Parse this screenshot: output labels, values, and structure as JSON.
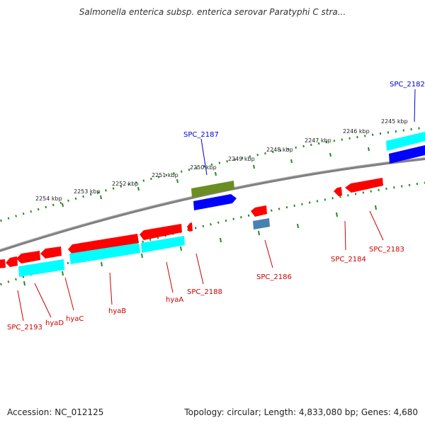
{
  "title": "Salmonella enterica subsp. enterica serovar Paratyphi C stra...",
  "footer": {
    "accession": "Accession: NC_012125",
    "summary": "Topology: circular; Length: 4,833,080 bp; Genes: 4,680"
  },
  "colors": {
    "gene_red": "#ff0000",
    "gene_cyan": "#00ffff",
    "gene_blue": "#0000ff",
    "gene_olive": "#6b8e23",
    "gene_steel": "#4682b4",
    "label_red": "#cc0000",
    "label_blue": "#0000cc",
    "tick_green": "#228b22",
    "backbone": "#808080"
  },
  "scale_labels": [
    "2254 kbp",
    "2253 kbp",
    "2252 kbp",
    "2251 kbp",
    "2250 kbp",
    "2249 kbp",
    "2248 kbp",
    "2247 kbp",
    "2246 kbp",
    "2245 kbp"
  ],
  "gene_labels": [
    "SPC_2182",
    "SPC_2187",
    "SPC_2183",
    "SPC_2184",
    "SPC_2186",
    "SPC_2188",
    "hyaA",
    "hyaB",
    "hyaC",
    "hyaD",
    "SPC_2193"
  ]
}
